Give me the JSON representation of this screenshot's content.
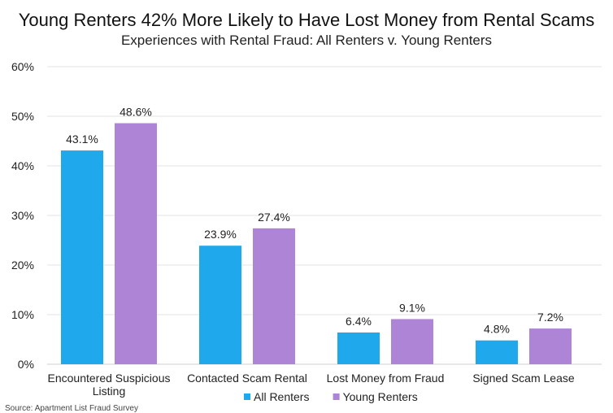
{
  "chart_data": {
    "type": "bar",
    "title": "Young Renters 42% More Likely to Have Lost Money from Rental Scams",
    "subtitle": "Experiences with Rental Fraud: All Renters v. Young Renters",
    "categories": [
      "Encountered Suspicious Listing",
      "Contacted Scam Rental",
      "Lost Money from Fraud",
      "Signed Scam Lease"
    ],
    "category_lines": [
      [
        "Encountered Suspicious",
        "Listing"
      ],
      [
        "Contacted Scam Rental"
      ],
      [
        "Lost Money from Fraud"
      ],
      [
        "Signed Scam Lease"
      ]
    ],
    "series": [
      {
        "name": "All Renters",
        "color": "#1fa9ec",
        "values": [
          43.1,
          23.9,
          6.4,
          4.8
        ],
        "labels": [
          "43.1%",
          "23.9%",
          "6.4%",
          "4.8%"
        ]
      },
      {
        "name": "Young Renters",
        "color": "#ad84d6",
        "values": [
          48.6,
          27.4,
          9.1,
          7.2
        ],
        "labels": [
          "48.6%",
          "27.4%",
          "9.1%",
          "7.2%"
        ]
      }
    ],
    "ylim": [
      0,
      60
    ],
    "yticks": [
      0,
      10,
      20,
      30,
      40,
      50,
      60
    ],
    "ytick_labels": [
      "0%",
      "10%",
      "20%",
      "30%",
      "40%",
      "50%",
      "60%"
    ],
    "xlabel": "",
    "ylabel": "",
    "grid": true,
    "legend_position": "bottom-center"
  },
  "source": "Source: Apartment List Fraud Survey"
}
